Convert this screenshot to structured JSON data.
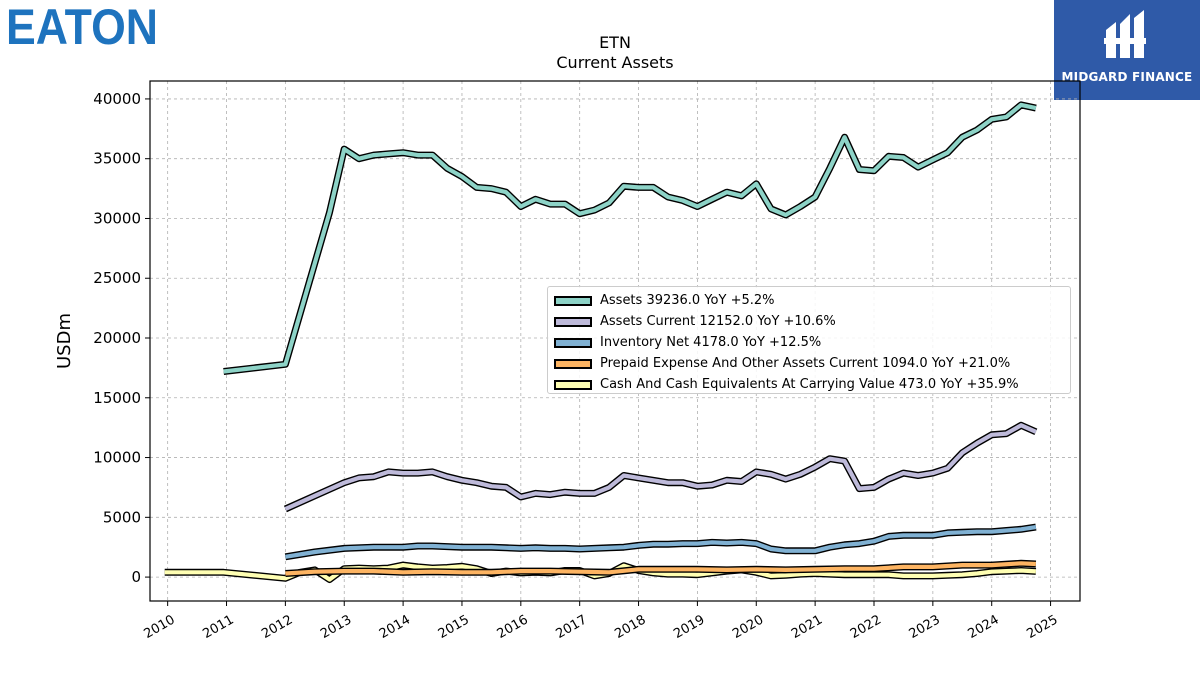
{
  "logos": {
    "left": "EATON",
    "right": "MIDGARD FINANCE"
  },
  "chart_data": {
    "type": "line",
    "title": "ETN",
    "subtitle": "Current  Assets",
    "ylabel": "USDm",
    "xlabel": "",
    "ylim": [
      -2000,
      41500
    ],
    "xlim": [
      2009.7,
      2025.5
    ],
    "yticks": [
      0,
      5000,
      10000,
      15000,
      20000,
      25000,
      30000,
      35000,
      40000
    ],
    "xticks": [
      "2010",
      "2011",
      "2012",
      "2013",
      "2014",
      "2015",
      "2016",
      "2017",
      "2018",
      "2019",
      "2020",
      "2021",
      "2022",
      "2023",
      "2024",
      "2025"
    ],
    "grid": true,
    "legend_position": "center-right",
    "series": [
      {
        "name": "Assets",
        "legend": "Assets  39236.0 YoY +5.2%",
        "color": "#8dd3c7",
        "x": [
          2010.95,
          2012.0,
          2012.75,
          2013.0,
          2013.25,
          2013.5,
          2013.75,
          2014.0,
          2014.25,
          2014.5,
          2014.75,
          2015.0,
          2015.25,
          2015.5,
          2015.75,
          2016.0,
          2016.25,
          2016.5,
          2016.75,
          2017.0,
          2017.25,
          2017.5,
          2017.75,
          2018.0,
          2018.25,
          2018.5,
          2018.75,
          2019.0,
          2019.25,
          2019.5,
          2019.75,
          2020.0,
          2020.25,
          2020.5,
          2020.75,
          2021.0,
          2021.25,
          2021.5,
          2021.75,
          2022.0,
          2022.25,
          2022.5,
          2022.75,
          2023.0,
          2023.25,
          2023.5,
          2023.75,
          2024.0,
          2024.25,
          2024.5,
          2024.75
        ],
        "values": [
          17200,
          17800,
          30500,
          35800,
          35000,
          35300,
          35400,
          35500,
          35300,
          35300,
          34200,
          33500,
          32600,
          32500,
          32200,
          31000,
          31600,
          31200,
          31200,
          30400,
          30700,
          31300,
          32700,
          32600,
          32600,
          31800,
          31500,
          31000,
          31600,
          32200,
          31900,
          32900,
          30800,
          30300,
          31000,
          31800,
          34200,
          36800,
          34100,
          34000,
          35200,
          35100,
          34300,
          34900,
          35500,
          36800,
          37400,
          38300,
          38500,
          39500,
          39236
        ]
      },
      {
        "name": "Assets Current",
        "legend": "Assets Current  12152.0 YoY +10.6%",
        "color": "#bebada",
        "x": [
          2012.0,
          2012.5,
          2013.0,
          2013.25,
          2013.5,
          2013.75,
          2014.0,
          2014.25,
          2014.5,
          2014.75,
          2015.0,
          2015.25,
          2015.5,
          2015.75,
          2016.0,
          2016.25,
          2016.5,
          2016.75,
          2017.0,
          2017.25,
          2017.5,
          2017.75,
          2018.0,
          2018.25,
          2018.5,
          2018.75,
          2019.0,
          2019.25,
          2019.5,
          2019.75,
          2020.0,
          2020.25,
          2020.5,
          2020.75,
          2021.0,
          2021.25,
          2021.5,
          2021.75,
          2022.0,
          2022.25,
          2022.5,
          2022.75,
          2023.0,
          2023.25,
          2023.5,
          2023.75,
          2024.0,
          2024.25,
          2024.5,
          2024.75
        ],
        "values": [
          5700,
          6800,
          7900,
          8300,
          8400,
          8800,
          8700,
          8700,
          8800,
          8400,
          8100,
          7900,
          7600,
          7500,
          6700,
          7000,
          6900,
          7100,
          7000,
          7000,
          7500,
          8500,
          8300,
          8100,
          7900,
          7900,
          7600,
          7700,
          8100,
          8000,
          8800,
          8600,
          8200,
          8600,
          9200,
          9900,
          9700,
          7400,
          7500,
          8200,
          8700,
          8500,
          8700,
          9100,
          10400,
          11200,
          11900,
          12000,
          12700,
          12152
        ]
      },
      {
        "name": "Inventory Net",
        "legend": "Inventory Net  4178.0 YoY +12.5%",
        "color": "#80b1d3",
        "x": [
          2012.0,
          2012.5,
          2013.0,
          2013.5,
          2014.0,
          2014.25,
          2014.5,
          2014.75,
          2015.0,
          2015.25,
          2015.5,
          2015.75,
          2016.0,
          2016.25,
          2016.5,
          2016.75,
          2017.0,
          2017.25,
          2017.5,
          2017.75,
          2018.0,
          2018.25,
          2018.5,
          2018.75,
          2019.0,
          2019.25,
          2019.5,
          2019.75,
          2020.0,
          2020.25,
          2020.5,
          2020.75,
          2021.0,
          2021.25,
          2021.5,
          2021.75,
          2022.0,
          2022.25,
          2022.5,
          2022.75,
          2023.0,
          2023.25,
          2023.5,
          2023.75,
          2024.0,
          2024.25,
          2024.5,
          2024.75
        ],
        "values": [
          1700,
          2100,
          2400,
          2500,
          2500,
          2600,
          2600,
          2550,
          2500,
          2500,
          2500,
          2450,
          2400,
          2450,
          2400,
          2400,
          2350,
          2400,
          2450,
          2500,
          2650,
          2750,
          2750,
          2800,
          2800,
          2900,
          2850,
          2900,
          2800,
          2350,
          2200,
          2200,
          2200,
          2500,
          2700,
          2800,
          3000,
          3400,
          3500,
          3500,
          3500,
          3700,
          3750,
          3800,
          3800,
          3900,
          4000,
          4178
        ]
      },
      {
        "name": "Prepaid Expense And Other Assets Current",
        "legend": "Prepaid Expense And Other Assets Current  1094.0 YoY +21.0%",
        "color": "#fdb462",
        "x": [
          2012.0,
          2012.5,
          2013.0,
          2013.5,
          2014.0,
          2014.5,
          2015.0,
          2015.5,
          2016.0,
          2016.5,
          2017.0,
          2017.5,
          2018.0,
          2018.5,
          2019.0,
          2019.5,
          2020.0,
          2020.5,
          2021.0,
          2021.5,
          2022.0,
          2022.5,
          2023.0,
          2023.5,
          2024.0,
          2024.5,
          2024.75
        ],
        "values": [
          300,
          450,
          500,
          500,
          400,
          450,
          400,
          400,
          500,
          500,
          450,
          400,
          650,
          650,
          650,
          600,
          650,
          600,
          650,
          700,
          700,
          850,
          850,
          1000,
          1000,
          1150,
          1094
        ]
      },
      {
        "name": "Cash And Cash Equivalents At Carrying Value",
        "legend": "Cash And Cash Equivalents At Carrying Value  473.0 YoY +35.9%",
        "color": "#ffffb3",
        "x": [
          2009.95,
          2010.95,
          2012.0,
          2012.25,
          2012.5,
          2012.75,
          2013.0,
          2013.25,
          2013.5,
          2013.75,
          2014.0,
          2014.25,
          2014.5,
          2014.75,
          2015.0,
          2015.25,
          2015.5,
          2015.75,
          2016.0,
          2016.25,
          2016.5,
          2016.75,
          2017.0,
          2017.25,
          2017.5,
          2017.75,
          2018.0,
          2018.25,
          2018.5,
          2018.75,
          2019.0,
          2019.25,
          2019.5,
          2019.75,
          2020.0,
          2020.25,
          2020.5,
          2020.75,
          2021.0,
          2021.25,
          2021.5,
          2021.75,
          2022.0,
          2022.25,
          2022.5,
          2022.75,
          2023.0,
          2023.25,
          2023.5,
          2023.75,
          2024.0,
          2024.25,
          2024.5,
          2024.75
        ],
        "values": [
          400,
          400,
          -100,
          400,
          600,
          -200,
          700,
          750,
          700,
          750,
          1000,
          850,
          750,
          800,
          900,
          700,
          300,
          500,
          350,
          400,
          350,
          550,
          550,
          100,
          300,
          950,
          550,
          350,
          250,
          250,
          200,
          350,
          500,
          600,
          400,
          100,
          150,
          250,
          300,
          250,
          200,
          200,
          200,
          200,
          100,
          100,
          100,
          150,
          200,
          300,
          450,
          500,
          550,
          473
        ]
      }
    ]
  }
}
